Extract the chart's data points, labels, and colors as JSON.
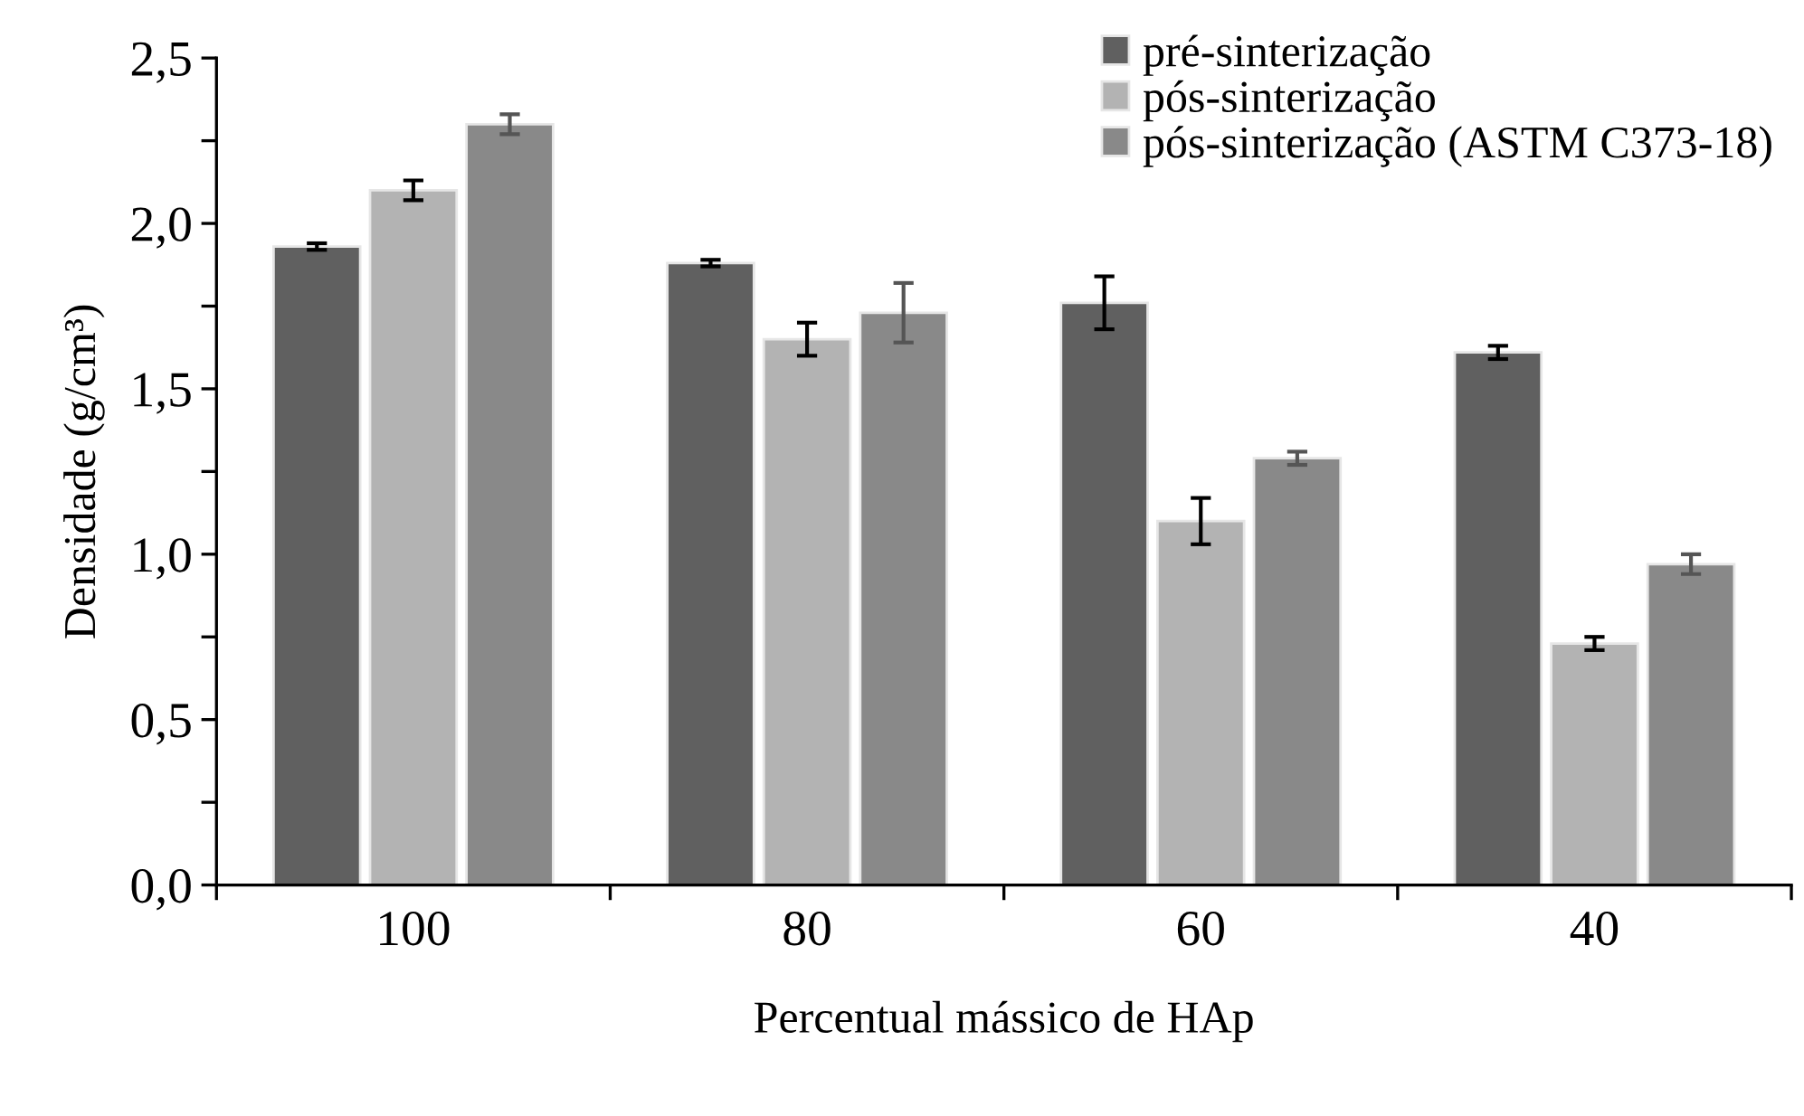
{
  "chart_data": {
    "type": "bar",
    "xlabel": "Percentual mássico de HAp",
    "ylabel": "Densidade (g/cm³)",
    "categories": [
      "100",
      "80",
      "60",
      "40"
    ],
    "series": [
      {
        "name": "pré-sinterização",
        "color": "#606060",
        "values": [
          1.93,
          1.88,
          1.76,
          1.61
        ],
        "errors": [
          0.01,
          0.01,
          0.08,
          0.02
        ]
      },
      {
        "name": "pós-sinterização",
        "color": "#b3b3b3",
        "values": [
          2.1,
          1.65,
          1.1,
          0.73
        ],
        "errors": [
          0.03,
          0.05,
          0.07,
          0.02
        ]
      },
      {
        "name": "pós-sinterização (ASTM C373-18)",
        "color": "#898989",
        "values": [
          2.3,
          1.73,
          1.29,
          0.97
        ],
        "errors": [
          0.03,
          0.09,
          0.02,
          0.03
        ]
      }
    ],
    "ylim": [
      0,
      2.5
    ],
    "yticks": [
      {
        "value": 0,
        "label": "0,0"
      },
      {
        "value": 0.25,
        "label": null
      },
      {
        "value": 0.5,
        "label": "0,5"
      },
      {
        "value": 0.75,
        "label": null
      },
      {
        "value": 1.0,
        "label": "1,0"
      },
      {
        "value": 1.25,
        "label": null
      },
      {
        "value": 1.5,
        "label": "1,5"
      },
      {
        "value": 1.75,
        "label": null
      },
      {
        "value": 2.0,
        "label": "2,0"
      },
      {
        "value": 2.25,
        "label": null
      },
      {
        "value": 2.5,
        "label": "2,5"
      }
    ],
    "grid": false,
    "legend": "top right"
  }
}
